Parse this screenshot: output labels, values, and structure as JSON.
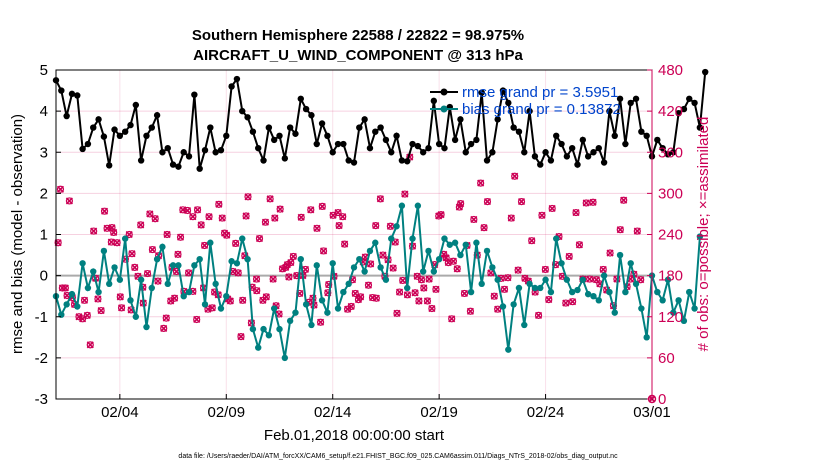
{
  "chart_data": {
    "type": "line",
    "title": "Southern Hemisphere 22588 / 22822 = 98.975%",
    "subtitle": "AIRCRAFT_U_WIND_COMPONENT @ 313 hPa",
    "xlabel": "Feb.01,2018 00:00:00 start",
    "ylabel": "rmse and bias (model - observation)",
    "y2label": "# of obs: o=possible; ×=assimilated",
    "footer": "data file: /Users/raeder/DAI/ATM_forcXX/CAM6_setup/f.e21.FHIST_BGC.f09_025.CAM6assim.011/Diags_NTrS_2018-02/obs_diag_output.nc",
    "xlim": [
      1,
      29
    ],
    "x_ticks": [
      {
        "value": 4,
        "label": "02/04"
      },
      {
        "value": 9,
        "label": "02/09"
      },
      {
        "value": 14,
        "label": "02/14"
      },
      {
        "value": 19,
        "label": "02/19"
      },
      {
        "value": 24,
        "label": "02/24"
      },
      {
        "value": 29,
        "label": "03/01"
      }
    ],
    "ylim": [
      -3,
      5
    ],
    "y_ticks": [
      "-3",
      "-2",
      "-1",
      "0",
      "1",
      "2",
      "3",
      "4",
      "5"
    ],
    "y2lim": [
      0,
      480
    ],
    "y2_ticks": [
      "0",
      "60",
      "120",
      "180",
      "240",
      "300",
      "360",
      "420",
      "480"
    ],
    "x_start": 1.0,
    "x_step": 0.25,
    "series": [
      {
        "name": "rmse",
        "legend": "rmse grand pr = 3.5951",
        "color": "#000000",
        "values": [
          4.75,
          4.5,
          3.88,
          4.42,
          4.38,
          3.08,
          3.2,
          3.6,
          3.8,
          3.38,
          2.68,
          3.55,
          3.4,
          3.5,
          3.66,
          4.15,
          2.8,
          3.4,
          3.6,
          3.9,
          3.0,
          3.1,
          2.7,
          2.65,
          3.0,
          2.9,
          4.4,
          2.6,
          3.05,
          3.6,
          3.0,
          3.05,
          3.4,
          4.6,
          4.78,
          4.0,
          3.85,
          3.5,
          3.1,
          2.8,
          3.6,
          3.3,
          3.4,
          2.85,
          3.6,
          3.45,
          4.3,
          4.05,
          3.9,
          3.2,
          3.7,
          3.4,
          3.0,
          3.2,
          3.2,
          2.8,
          2.75,
          3.6,
          3.8,
          3.1,
          3.5,
          3.6,
          3.3,
          3.0,
          3.4,
          2.8,
          2.78,
          3.2,
          3.15,
          3.0,
          3.1,
          4.25,
          3.2,
          3.1,
          4.1,
          3.3,
          3.8,
          3.0,
          3.2,
          3.3,
          4.45,
          2.8,
          3.0,
          3.8,
          4.5,
          4.2,
          3.6,
          3.5,
          3.0,
          4.0,
          2.9,
          2.7,
          3.0,
          2.8,
          3.4,
          3.2,
          2.9,
          3.1,
          2.7,
          3.3,
          2.9,
          3.0,
          3.1,
          2.75,
          4.0,
          3.4,
          4.3,
          3.2,
          4.2,
          4.3,
          3.5,
          3.4,
          2.9,
          3.3,
          3.1,
          2.95,
          3.0,
          3.95,
          4.05,
          4.3,
          4.2,
          3.6,
          4.95
        ],
        "marker": "dot"
      },
      {
        "name": "bias",
        "legend": "bias grand pr = 0.13872",
        "color": "#008080",
        "values": [
          -0.5,
          -0.95,
          -0.7,
          -0.45,
          -0.75,
          0.3,
          -0.3,
          0.1,
          -0.4,
          0.6,
          -0.2,
          0.2,
          -0.1,
          0.9,
          -0.6,
          -1.0,
          -0.1,
          -1.25,
          -0.3,
          0.4,
          0.7,
          -0.2,
          0.25,
          0.25,
          -0.5,
          -0.4,
          0.25,
          0.4,
          -0.7,
          0.8,
          -0.2,
          -0.8,
          -0.5,
          0.35,
          0.3,
          0.9,
          0.4,
          -1.3,
          -1.75,
          -1.3,
          -1.45,
          -0.8,
          -1.3,
          -2.0,
          -1.1,
          -0.9,
          0.4,
          -0.7,
          -1.2,
          0.25,
          -0.6,
          -0.9,
          0.3,
          -0.8,
          -0.4,
          -0.2,
          0.2,
          0.4,
          0.1,
          0.6,
          0.8,
          0.2,
          -0.1,
          0.9,
          1.2,
          1.7,
          -0.3,
          0.9,
          1.7,
          0.1,
          0.6,
          0.1,
          0.4,
          0.9,
          0.75,
          0.8,
          0.5,
          0.75,
          -0.4,
          0.8,
          -0.2,
          0.6,
          0.2,
          -0.1,
          -0.75,
          -1.8,
          -0.7,
          -0.3,
          -1.2,
          -0.2,
          -0.3,
          -0.3,
          -0.1,
          -0.4,
          0.9,
          0.3,
          -0.1,
          -0.4,
          -0.35,
          -0.1,
          -0.45,
          -0.5,
          -0.6,
          0.0,
          -0.4,
          -0.9,
          0.5,
          -0.4,
          0.3,
          -0.2,
          -0.8,
          -1.5,
          0.0,
          -0.4,
          -0.6,
          -0.1,
          -0.9,
          -0.6,
          -1.1,
          -0.4,
          -0.8,
          0.95
        ],
        "marker": "dot"
      },
      {
        "name": "obs_possible",
        "axis": "right",
        "color": "#cc0055",
        "marker": "circle",
        "values": [
          228,
          306,
          162,
          162,
          151,
          289,
          148,
          138,
          120,
          117,
          144,
          122,
          79,
          245,
          176,
          146,
          129,
          274,
          249,
          229,
          250,
          243,
          228,
          149,
          133,
          204,
          240,
          130,
          212,
          192,
          179,
          254,
          163,
          140,
          183,
          270,
          218,
          263,
          172,
          209,
          103,
          118,
          240,
          143,
          192,
          147,
          186,
          211,
          236,
          276,
          157,
          275,
          184,
          157,
          266,
          116,
          276,
          254,
          162,
          224,
          131,
          266,
          133,
          156,
          152,
          284,
          264,
          242,
          239,
          146,
          143,
          186,
          227,
          184,
          91,
          144,
          209,
          267,
          295,
          111,
          163,
          175,
          158,
          234,
          144,
          258,
          149,
          292,
          175,
          264,
          136,
          124,
          277,
          190,
          192,
          196,
          178,
          199,
          208,
          180,
          154,
          265,
          180,
          189,
          141,
          276,
          147,
          137,
          249,
          112,
          281,
          216,
          155,
          167,
          268,
          179,
          272,
          253,
          266,
          226,
          131,
          135,
          174,
          154,
          145,
          149,
          200,
          207,
          166,
          197,
          148,
          253,
          147,
          292,
          210,
          179,
          203,
          252,
          191,
          229,
          125,
          156,
          173,
          299,
          152,
          353,
          223,
          155,
          179,
          143,
          174,
          162,
          143,
          175,
          132,
          196,
          160,
          267,
          269,
          211,
          206,
          199,
          117,
          201,
          190,
          280,
          285,
          154
        ],
        "x": [
          1.1,
          1.21,
          1.3,
          1.44,
          1.52,
          1.63,
          1.77,
          1.87,
          2.08,
          2.25,
          2.34,
          2.47,
          2.61,
          2.77,
          2.86,
          2.97,
          3.12,
          3.28,
          3.4,
          3.6,
          3.63,
          3.71,
          3.87,
          4.02,
          4.08,
          4.26,
          4.44,
          4.53,
          4.57,
          4.7,
          4.85,
          4.98,
          5.08,
          5.1,
          5.3,
          5.41,
          5.53,
          5.66,
          5.79,
          5.82,
          6.06,
          6.18,
          6.22,
          6.39,
          6.45,
          6.57,
          6.66,
          6.73,
          6.85,
          6.96,
          7.01,
          7.18,
          7.23,
          7.43,
          7.43,
          7.61,
          7.65,
          7.82,
          7.93,
          7.98,
          8.14,
          8.19,
          8.34,
          8.45,
          8.62,
          8.65,
          8.81,
          8.92,
          9.02,
          9.07,
          9.19,
          9.31,
          9.44,
          9.56,
          9.69,
          9.77,
          9.87,
          9.93,
          10.02,
          10.18,
          10.22,
          10.42,
          10.43,
          10.56,
          10.72,
          10.84,
          10.88,
          11.06,
          11.2,
          11.28,
          11.34,
          11.48,
          11.53,
          11.64,
          11.79,
          11.87,
          11.94,
          12.03,
          12.15,
          12.31,
          12.45,
          12.52,
          12.6,
          12.72,
          12.86,
          12.97,
          13.07,
          13.12,
          13.26,
          13.43,
          13.51,
          13.57,
          13.77,
          13.81,
          14.02,
          14.06,
          14.25,
          14.3,
          14.47,
          14.56,
          14.7,
          14.87,
          14.93,
          15.06,
          15.21,
          15.31,
          15.43,
          15.53,
          15.68,
          15.78,
          15.87,
          16.02,
          16.05,
          16.24,
          16.36,
          16.45,
          16.6,
          16.71,
          16.84,
          16.94,
          17.02,
          17.14,
          17.29,
          17.39,
          17.51,
          17.62,
          17.75,
          17.87,
          17.97,
          18.05,
          18.17,
          18.28,
          18.45,
          18.53,
          18.66,
          18.79,
          18.85,
          18.98,
          19.09,
          19.22,
          19.33,
          19.43,
          19.59,
          19.67,
          19.85,
          19.95,
          20.01,
          20.19
        ],
        "x_note": "for the remaining points, x continues at x_start + index*x_step",
        "tail_values": [
          224,
          128,
          262,
          210,
          315,
          250,
          288,
          184,
          150,
          131,
          176,
          160,
          177,
          264,
          325,
          188,
          288,
          176,
          172,
          231,
          156,
          122,
          268,
          189,
          145,
          278,
          196,
          237,
          179,
          140,
          208,
          142,
          272,
          225,
          175,
          286,
          175,
          287,
          174,
          168,
          189,
          159,
          213,
          136,
          175,
          247,
          290,
          164,
          175,
          182,
          245,
          174
        ]
      },
      {
        "name": "obs_assimilated",
        "axis": "right",
        "color": "#cc0055",
        "marker": "cross",
        "note": "plotted coincident with obs_possible markers"
      }
    ],
    "legend_position": "top-right"
  }
}
